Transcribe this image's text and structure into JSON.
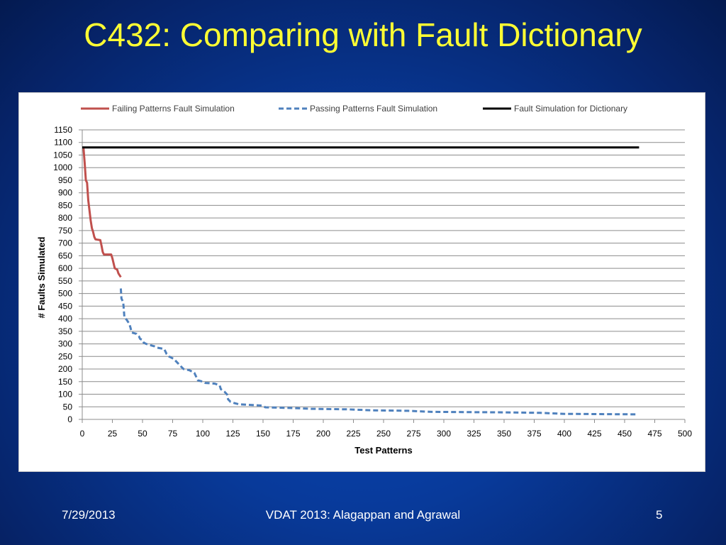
{
  "slide": {
    "title": "C432: Comparing with Fault Dictionary",
    "footer_date": "7/29/2013",
    "footer_center": "VDAT 2013: Alagappan and Agrawal",
    "page_number": "5"
  },
  "chart_data": {
    "type": "line",
    "xlabel": "Test Patterns",
    "ylabel": "# Faults Simulated",
    "xlim": [
      0,
      500
    ],
    "ylim": [
      0,
      1150
    ],
    "x_ticks": [
      0,
      25,
      50,
      75,
      100,
      125,
      150,
      175,
      200,
      225,
      250,
      275,
      300,
      325,
      350,
      375,
      400,
      425,
      450,
      475,
      500
    ],
    "y_ticks": [
      0,
      50,
      100,
      150,
      200,
      250,
      300,
      350,
      400,
      450,
      500,
      550,
      600,
      650,
      700,
      750,
      800,
      850,
      900,
      950,
      1000,
      1050,
      1100,
      1150
    ],
    "grid": "horizontal",
    "legend_position": "top",
    "series": [
      {
        "name": "Failing Patterns Fault Simulation",
        "color": "#c0504d",
        "style": "solid",
        "points": [
          [
            1,
            1080
          ],
          [
            2,
            1020
          ],
          [
            3,
            950
          ],
          [
            4,
            940
          ],
          [
            5,
            870
          ],
          [
            6,
            830
          ],
          [
            7,
            790
          ],
          [
            8,
            760
          ],
          [
            9,
            745
          ],
          [
            10,
            725
          ],
          [
            11,
            715
          ],
          [
            15,
            712
          ],
          [
            16,
            690
          ],
          [
            17,
            665
          ],
          [
            18,
            655
          ],
          [
            24,
            655
          ],
          [
            25,
            640
          ],
          [
            26,
            620
          ],
          [
            27,
            600
          ],
          [
            29,
            595
          ],
          [
            30,
            580
          ],
          [
            32,
            565
          ]
        ]
      },
      {
        "name": "Passing Patterns Fault Simulation",
        "color": "#4f81bd",
        "style": "dashed",
        "points": [
          [
            32,
            520
          ],
          [
            32.5,
            480
          ],
          [
            34,
            465
          ],
          [
            35,
            405
          ],
          [
            37,
            395
          ],
          [
            39,
            380
          ],
          [
            40,
            365
          ],
          [
            41,
            345
          ],
          [
            45,
            340
          ],
          [
            47,
            330
          ],
          [
            48,
            320
          ],
          [
            50,
            315
          ],
          [
            51,
            305
          ],
          [
            53,
            300
          ],
          [
            60,
            290
          ],
          [
            62,
            285
          ],
          [
            68,
            280
          ],
          [
            70,
            260
          ],
          [
            72,
            250
          ],
          [
            76,
            240
          ],
          [
            79,
            225
          ],
          [
            82,
            210
          ],
          [
            84,
            200
          ],
          [
            89,
            195
          ],
          [
            93,
            185
          ],
          [
            95,
            165
          ],
          [
            96,
            155
          ],
          [
            100,
            150
          ],
          [
            102,
            145
          ],
          [
            110,
            142
          ],
          [
            114,
            135
          ],
          [
            115,
            120
          ],
          [
            118,
            110
          ],
          [
            120,
            100
          ],
          [
            121,
            80
          ],
          [
            123,
            70
          ],
          [
            126,
            65
          ],
          [
            130,
            60
          ],
          [
            149,
            55
          ],
          [
            152,
            48
          ],
          [
            175,
            45
          ],
          [
            190,
            42
          ],
          [
            220,
            40
          ],
          [
            240,
            36
          ],
          [
            270,
            34
          ],
          [
            290,
            30
          ],
          [
            350,
            28
          ],
          [
            380,
            26
          ],
          [
            400,
            22
          ],
          [
            460,
            20
          ]
        ]
      },
      {
        "name": "Fault Simulation for Dictionary",
        "color": "#000000",
        "style": "solid",
        "points": [
          [
            0,
            1080
          ],
          [
            462,
            1080
          ]
        ]
      }
    ]
  }
}
